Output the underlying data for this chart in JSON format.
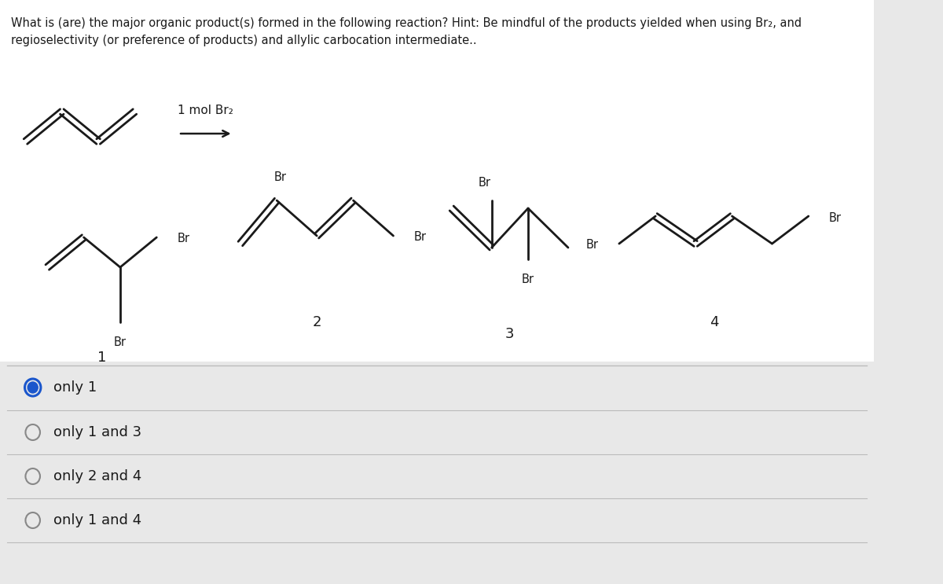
{
  "title_line1": "What is (are) the major organic product(s) formed in the following reaction? Hint: Be mindful of the products yielded when using Br₂, and",
  "title_line2": "regioselectivity (or preference of products) and allylic carbocation intermediate..",
  "reagent": "1 mol Br₂",
  "background_color": "#e8e8e8",
  "options": [
    {
      "text": "only 1",
      "selected": true
    },
    {
      "text": "only 1 and 3",
      "selected": false
    },
    {
      "text": "only 2 and 4",
      "selected": false
    },
    {
      "text": "only 1 and 4",
      "selected": false
    }
  ],
  "selected_color": "#1a56cc",
  "line_color": "#1a1a1a",
  "text_color": "#1a1a1a",
  "option_sep_color": "#bbbbbb"
}
